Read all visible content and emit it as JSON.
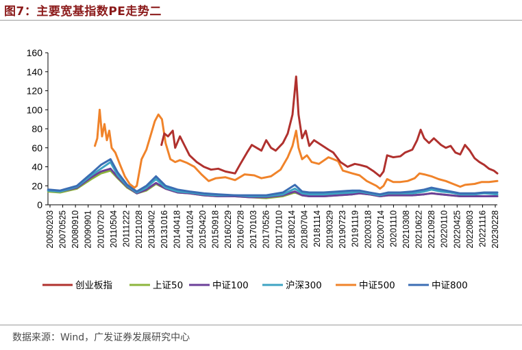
{
  "figure_title": "图7：主要宽基指数PE走势二",
  "source": "数据来源：Wind，广发证券发展研究中心",
  "colors": {
    "创业板指": "#b0312e",
    "上证50": "#8cb43c",
    "中证100": "#6b3f98",
    "沪深300": "#3ea3c3",
    "中证500": "#f0832a",
    "中证800": "#3b6db3",
    "title": "#8b1a1a"
  },
  "chart_data": {
    "type": "line",
    "title": "",
    "xlabel": "",
    "ylabel": "",
    "ylim": [
      0,
      160
    ],
    "yticks": [
      0,
      20,
      40,
      60,
      80,
      100,
      120,
      140,
      160
    ],
    "grid": false,
    "legend_position": "bottom",
    "x_tick_labels": [
      "20050203",
      "20070525",
      "20080910",
      "20090901",
      "20100720",
      "20110504",
      "20111222",
      "20121028",
      "20130402",
      "20131016",
      "20140418",
      "20141024",
      "20150420",
      "20150918",
      "20160229",
      "20160728",
      "20170103",
      "20170526",
      "20171010",
      "20180214",
      "20180704",
      "20181114",
      "20190329",
      "20190723",
      "20191119",
      "20200318",
      "20200714",
      "20201110",
      "20210308",
      "20210622",
      "20210928",
      "20220110",
      "20220425",
      "20220803",
      "20221116",
      "20230228"
    ],
    "series": [
      {
        "name": "创业板指",
        "values": [
          [
            2009.83,
            63
          ],
          [
            2009.95,
            75
          ],
          [
            2010.1,
            72
          ],
          [
            2010.3,
            78
          ],
          [
            2010.4,
            60
          ],
          [
            2010.6,
            72
          ],
          [
            2010.8,
            62
          ],
          [
            2011.0,
            52
          ],
          [
            2011.3,
            45
          ],
          [
            2011.6,
            40
          ],
          [
            2011.9,
            37
          ],
          [
            2012.2,
            38
          ],
          [
            2012.5,
            35
          ],
          [
            2012.9,
            33
          ],
          [
            2013.1,
            42
          ],
          [
            2013.4,
            55
          ],
          [
            2013.6,
            63
          ],
          [
            2013.8,
            60
          ],
          [
            2014.0,
            57
          ],
          [
            2014.2,
            68
          ],
          [
            2014.4,
            60
          ],
          [
            2014.6,
            57
          ],
          [
            2014.9,
            65
          ],
          [
            2015.1,
            75
          ],
          [
            2015.3,
            95
          ],
          [
            2015.45,
            135
          ],
          [
            2015.55,
            95
          ],
          [
            2015.7,
            70
          ],
          [
            2015.85,
            78
          ],
          [
            2016.0,
            62
          ],
          [
            2016.2,
            68
          ],
          [
            2016.5,
            63
          ],
          [
            2016.8,
            58
          ],
          [
            2017.0,
            55
          ],
          [
            2017.3,
            45
          ],
          [
            2017.6,
            40
          ],
          [
            2017.9,
            43
          ],
          [
            2018.1,
            42
          ],
          [
            2018.4,
            40
          ],
          [
            2018.7,
            35
          ],
          [
            2018.95,
            30
          ],
          [
            2019.1,
            35
          ],
          [
            2019.25,
            52
          ],
          [
            2019.5,
            50
          ],
          [
            2019.8,
            51
          ],
          [
            2020.0,
            55
          ],
          [
            2020.3,
            58
          ],
          [
            2020.5,
            68
          ],
          [
            2020.65,
            79
          ],
          [
            2020.8,
            70
          ],
          [
            2021.0,
            65
          ],
          [
            2021.2,
            70
          ],
          [
            2021.5,
            63
          ],
          [
            2021.7,
            60
          ],
          [
            2021.9,
            62
          ],
          [
            2022.1,
            55
          ],
          [
            2022.3,
            53
          ],
          [
            2022.5,
            63
          ],
          [
            2022.7,
            57
          ],
          [
            2022.9,
            49
          ],
          [
            2023.1,
            45
          ],
          [
            2023.3,
            42
          ],
          [
            2023.5,
            38
          ],
          [
            2023.7,
            36
          ],
          [
            2023.85,
            33
          ]
        ]
      },
      {
        "name": "上证50",
        "values": [
          [
            2005.1,
            14
          ],
          [
            2005.6,
            13
          ],
          [
            2006.3,
            17
          ],
          [
            2006.9,
            27
          ],
          [
            2007.3,
            33
          ],
          [
            2007.7,
            36
          ],
          [
            2008.0,
            28
          ],
          [
            2008.4,
            18
          ],
          [
            2008.8,
            12
          ],
          [
            2009.2,
            15
          ],
          [
            2009.6,
            22
          ],
          [
            2010.0,
            17
          ],
          [
            2010.5,
            13
          ],
          [
            2011.0,
            12
          ],
          [
            2011.6,
            10
          ],
          [
            2012.2,
            9
          ],
          [
            2012.9,
            9
          ],
          [
            2013.5,
            8
          ],
          [
            2014.2,
            7
          ],
          [
            2014.9,
            9
          ],
          [
            2015.4,
            13
          ],
          [
            2015.7,
            10
          ],
          [
            2016.0,
            9
          ],
          [
            2016.6,
            9
          ],
          [
            2017.2,
            10
          ],
          [
            2017.8,
            11
          ],
          [
            2018.1,
            12
          ],
          [
            2018.5,
            11
          ],
          [
            2018.95,
            9
          ],
          [
            2019.3,
            10
          ],
          [
            2019.8,
            10
          ],
          [
            2020.3,
            10
          ],
          [
            2020.8,
            11
          ],
          [
            2021.1,
            12
          ],
          [
            2021.5,
            11
          ],
          [
            2021.9,
            10
          ],
          [
            2022.3,
            9
          ],
          [
            2022.9,
            9
          ],
          [
            2023.3,
            9
          ],
          [
            2023.85,
            9
          ]
        ]
      },
      {
        "name": "中证100",
        "values": [
          [
            2005.1,
            15
          ],
          [
            2005.6,
            14
          ],
          [
            2006.3,
            18
          ],
          [
            2006.9,
            29
          ],
          [
            2007.3,
            35
          ],
          [
            2007.7,
            38
          ],
          [
            2008.0,
            29
          ],
          [
            2008.4,
            19
          ],
          [
            2008.8,
            12
          ],
          [
            2009.2,
            16
          ],
          [
            2009.6,
            23
          ],
          [
            2010.0,
            17
          ],
          [
            2010.5,
            13
          ],
          [
            2011.0,
            12
          ],
          [
            2011.6,
            10
          ],
          [
            2012.2,
            9
          ],
          [
            2012.9,
            9
          ],
          [
            2013.5,
            8
          ],
          [
            2014.2,
            8
          ],
          [
            2014.9,
            10
          ],
          [
            2015.4,
            14
          ],
          [
            2015.7,
            10
          ],
          [
            2016.0,
            9
          ],
          [
            2016.6,
            9
          ],
          [
            2017.2,
            10
          ],
          [
            2017.8,
            11
          ],
          [
            2018.1,
            12
          ],
          [
            2018.5,
            11
          ],
          [
            2018.95,
            9
          ],
          [
            2019.3,
            10
          ],
          [
            2019.8,
            10
          ],
          [
            2020.3,
            10
          ],
          [
            2020.8,
            11
          ],
          [
            2021.1,
            12
          ],
          [
            2021.5,
            11
          ],
          [
            2021.9,
            10
          ],
          [
            2022.3,
            9
          ],
          [
            2022.9,
            9
          ],
          [
            2023.3,
            9
          ],
          [
            2023.85,
            9
          ]
        ]
      },
      {
        "name": "沪深300",
        "values": [
          [
            2005.1,
            15
          ],
          [
            2005.6,
            14
          ],
          [
            2006.3,
            19
          ],
          [
            2006.9,
            31
          ],
          [
            2007.3,
            38
          ],
          [
            2007.7,
            45
          ],
          [
            2008.0,
            31
          ],
          [
            2008.4,
            20
          ],
          [
            2008.8,
            13
          ],
          [
            2009.2,
            18
          ],
          [
            2009.6,
            27
          ],
          [
            2010.0,
            18
          ],
          [
            2010.5,
            14
          ],
          [
            2011.0,
            13
          ],
          [
            2011.6,
            11
          ],
          [
            2012.2,
            10
          ],
          [
            2012.9,
            10
          ],
          [
            2013.5,
            9
          ],
          [
            2014.2,
            9
          ],
          [
            2014.9,
            11
          ],
          [
            2015.4,
            17
          ],
          [
            2015.7,
            12
          ],
          [
            2016.0,
            11
          ],
          [
            2016.6,
            11
          ],
          [
            2017.2,
            12
          ],
          [
            2017.8,
            13
          ],
          [
            2018.1,
            14
          ],
          [
            2018.5,
            12
          ],
          [
            2018.95,
            10
          ],
          [
            2019.3,
            12
          ],
          [
            2019.8,
            12
          ],
          [
            2020.3,
            12
          ],
          [
            2020.8,
            14
          ],
          [
            2021.1,
            16
          ],
          [
            2021.5,
            14
          ],
          [
            2021.9,
            13
          ],
          [
            2022.3,
            11
          ],
          [
            2022.9,
            11
          ],
          [
            2023.3,
            12
          ],
          [
            2023.85,
            11
          ]
        ]
      },
      {
        "name": "中证500",
        "values": [
          [
            2007.05,
            62
          ],
          [
            2007.15,
            70
          ],
          [
            2007.25,
            100
          ],
          [
            2007.35,
            72
          ],
          [
            2007.45,
            85
          ],
          [
            2007.55,
            68
          ],
          [
            2007.65,
            78
          ],
          [
            2007.75,
            60
          ],
          [
            2007.9,
            55
          ],
          [
            2008.1,
            42
          ],
          [
            2008.3,
            30
          ],
          [
            2008.5,
            22
          ],
          [
            2008.7,
            18
          ],
          [
            2008.8,
            20
          ],
          [
            2009.0,
            48
          ],
          [
            2009.2,
            58
          ],
          [
            2009.4,
            75
          ],
          [
            2009.55,
            88
          ],
          [
            2009.7,
            95
          ],
          [
            2009.85,
            90
          ],
          [
            2010.0,
            65
          ],
          [
            2010.2,
            48
          ],
          [
            2010.4,
            45
          ],
          [
            2010.6,
            47
          ],
          [
            2010.9,
            44
          ],
          [
            2011.2,
            40
          ],
          [
            2011.5,
            32
          ],
          [
            2011.8,
            25
          ],
          [
            2012.1,
            28
          ],
          [
            2012.5,
            29
          ],
          [
            2012.9,
            26
          ],
          [
            2013.3,
            32
          ],
          [
            2013.7,
            31
          ],
          [
            2014.0,
            28
          ],
          [
            2014.4,
            30
          ],
          [
            2014.8,
            37
          ],
          [
            2015.1,
            50
          ],
          [
            2015.3,
            62
          ],
          [
            2015.45,
            78
          ],
          [
            2015.55,
            60
          ],
          [
            2015.7,
            48
          ],
          [
            2015.9,
            52
          ],
          [
            2016.1,
            45
          ],
          [
            2016.4,
            43
          ],
          [
            2016.8,
            50
          ],
          [
            2017.0,
            48
          ],
          [
            2017.2,
            46
          ],
          [
            2017.4,
            36
          ],
          [
            2017.8,
            33
          ],
          [
            2018.1,
            31
          ],
          [
            2018.4,
            25
          ],
          [
            2018.8,
            20
          ],
          [
            2018.95,
            17
          ],
          [
            2019.1,
            20
          ],
          [
            2019.25,
            27
          ],
          [
            2019.5,
            24
          ],
          [
            2019.8,
            24
          ],
          [
            2020.1,
            25
          ],
          [
            2020.4,
            28
          ],
          [
            2020.6,
            33
          ],
          [
            2020.8,
            32
          ],
          [
            2021.1,
            30
          ],
          [
            2021.4,
            27
          ],
          [
            2021.7,
            25
          ],
          [
            2022.0,
            22
          ],
          [
            2022.3,
            19
          ],
          [
            2022.5,
            21
          ],
          [
            2022.9,
            22
          ],
          [
            2023.2,
            24
          ],
          [
            2023.5,
            24
          ],
          [
            2023.85,
            25
          ]
        ]
      },
      {
        "name": "中证800",
        "values": [
          [
            2005.1,
            16
          ],
          [
            2005.6,
            15
          ],
          [
            2006.3,
            20
          ],
          [
            2006.9,
            33
          ],
          [
            2007.3,
            42
          ],
          [
            2007.7,
            48
          ],
          [
            2008.0,
            34
          ],
          [
            2008.4,
            21
          ],
          [
            2008.8,
            14
          ],
          [
            2009.2,
            20
          ],
          [
            2009.6,
            30
          ],
          [
            2010.0,
            20
          ],
          [
            2010.5,
            16
          ],
          [
            2011.0,
            14
          ],
          [
            2011.6,
            12
          ],
          [
            2012.2,
            11
          ],
          [
            2012.9,
            10
          ],
          [
            2013.5,
            10
          ],
          [
            2014.2,
            10
          ],
          [
            2014.9,
            13
          ],
          [
            2015.4,
            21
          ],
          [
            2015.7,
            14
          ],
          [
            2016.0,
            13
          ],
          [
            2016.6,
            13
          ],
          [
            2017.2,
            14
          ],
          [
            2017.8,
            15
          ],
          [
            2018.1,
            15
          ],
          [
            2018.5,
            13
          ],
          [
            2018.95,
            11
          ],
          [
            2019.3,
            13
          ],
          [
            2019.8,
            13
          ],
          [
            2020.3,
            14
          ],
          [
            2020.8,
            16
          ],
          [
            2021.1,
            18
          ],
          [
            2021.5,
            16
          ],
          [
            2021.9,
            14
          ],
          [
            2022.3,
            12
          ],
          [
            2022.9,
            12
          ],
          [
            2023.3,
            13
          ],
          [
            2023.85,
            13
          ]
        ]
      }
    ]
  }
}
